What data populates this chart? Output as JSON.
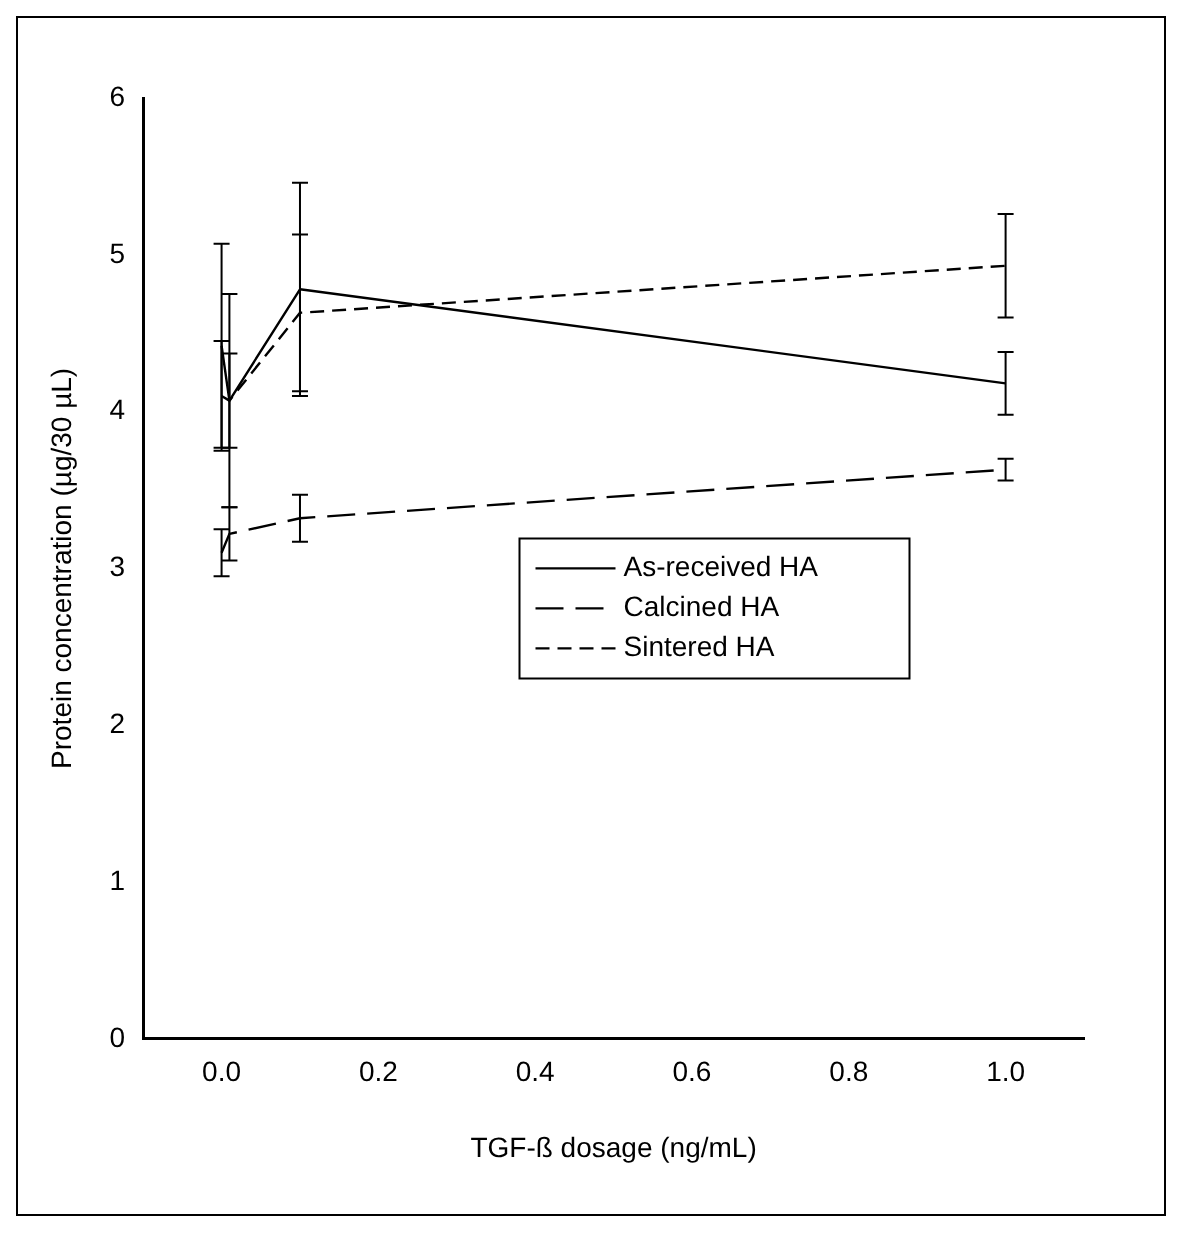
{
  "chart_data": {
    "type": "line",
    "xlabel": "TGF-ß dosage (ng/mL)",
    "ylabel": "Protein concentration (µg/30 µL)",
    "x": [
      0,
      0.01,
      0.1,
      1.0
    ],
    "series": [
      {
        "name": "As-received HA",
        "color": "#000000",
        "line_style": "solid",
        "values": [
          4.42,
          4.07,
          4.78,
          4.18
        ],
        "errors": [
          0.65,
          0.3,
          0.68,
          0.2
        ]
      },
      {
        "name": "Calcined HA",
        "color": "#000000",
        "line_style": "dashed",
        "values": [
          3.1,
          3.22,
          3.32,
          3.63
        ],
        "errors": [
          0.15,
          0.17,
          0.15,
          0.07
        ]
      },
      {
        "name": "Sintered HA",
        "color": "#000000",
        "line_style": "dashed",
        "values": [
          4.1,
          4.07,
          4.63,
          4.93
        ],
        "errors": [
          0.35,
          0.68,
          0.5,
          0.33
        ]
      }
    ],
    "xlim": [
      -0.1,
      1.1
    ],
    "xticks": [
      {
        "value": 0,
        "label": "0.0"
      },
      {
        "value": 0.2,
        "label": "0.2"
      },
      {
        "value": 0.4,
        "label": "0.4"
      },
      {
        "value": 0.6,
        "label": "0.6"
      },
      {
        "value": 0.8,
        "label": "0.8"
      },
      {
        "value": 1.0,
        "label": "1.0"
      }
    ],
    "ylim": [
      0,
      6
    ],
    "yticks": [
      0,
      1,
      2,
      3,
      4,
      5,
      6
    ],
    "grid": false,
    "legend": "center",
    "marker": "none"
  }
}
